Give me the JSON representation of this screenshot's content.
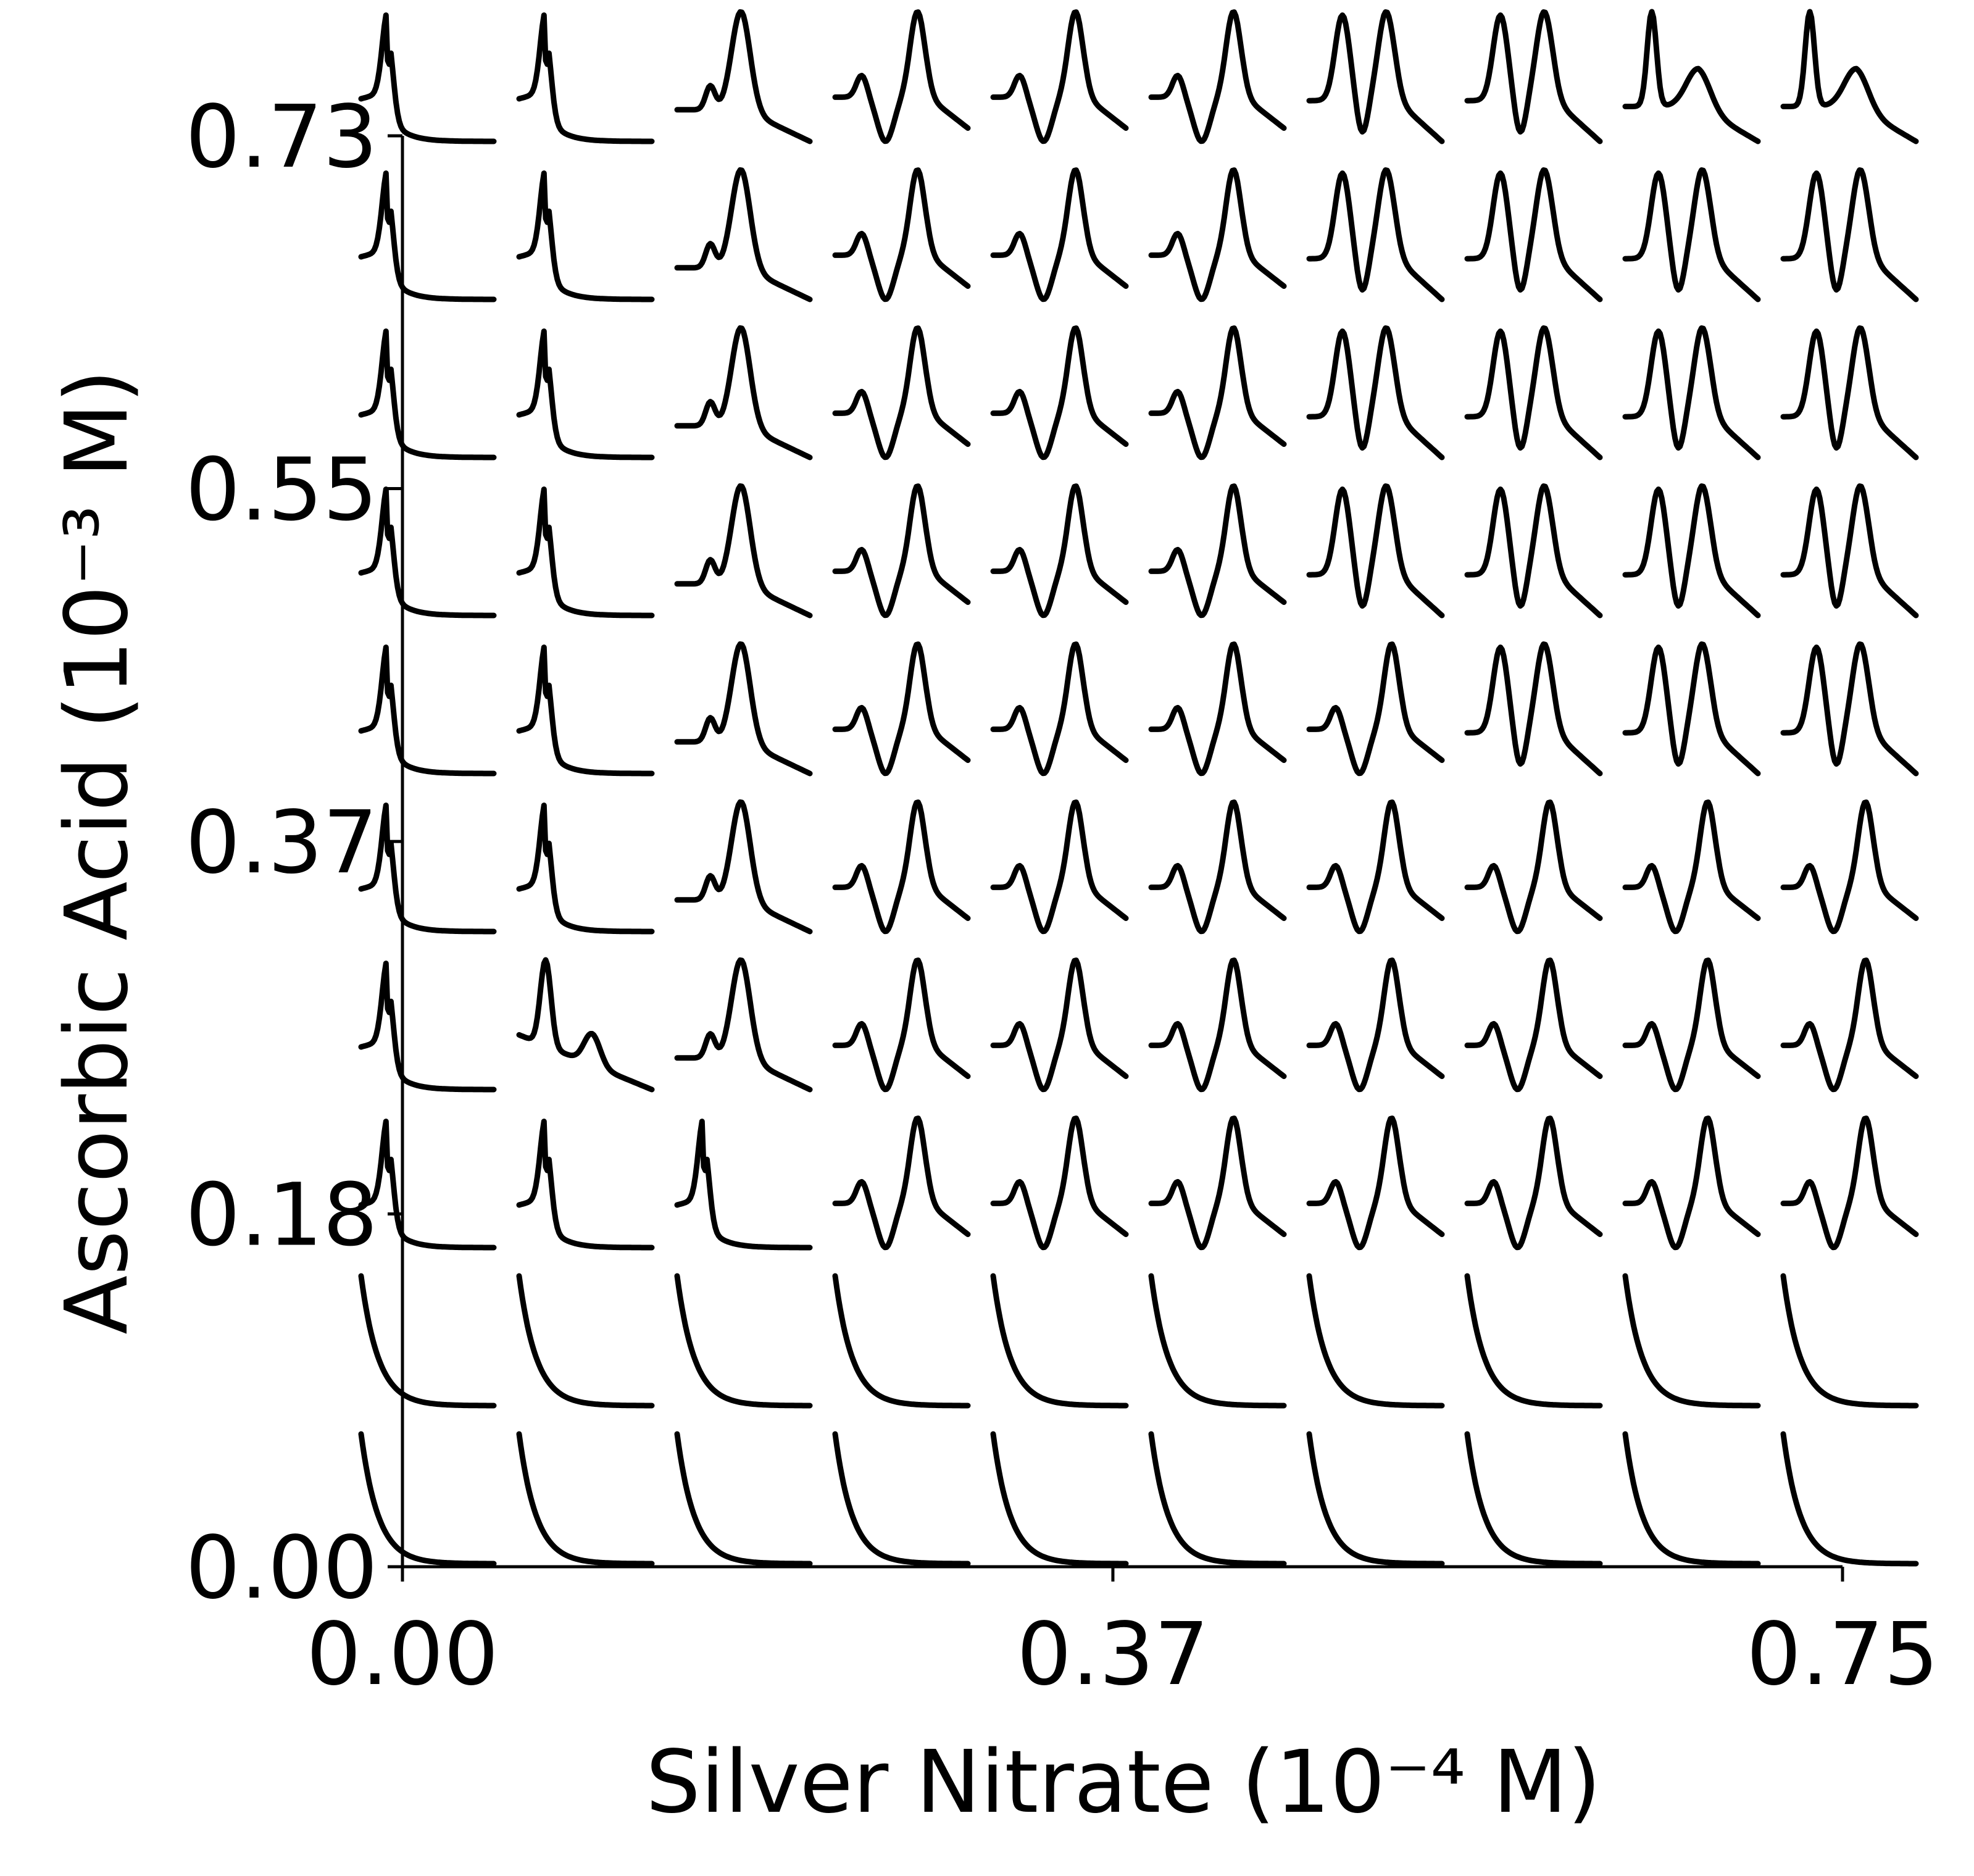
{
  "chart_data": {
    "type": "line",
    "description": "Grid of small absorbance spectra, one per (silver nitrate, ascorbic acid) concentration pair",
    "xlabel": "Silver Nitrate (10⁻⁴ M)",
    "ylabel": "Ascorbic Acid (10⁻³ M)",
    "xlim": [
      0.0,
      0.75
    ],
    "ylim": [
      0.0,
      0.73
    ],
    "x_ticks": [
      {
        "value": 0.0,
        "label": "0.00"
      },
      {
        "value": 0.37,
        "label": "0.37"
      },
      {
        "value": 0.75,
        "label": "0.75"
      }
    ],
    "y_ticks": [
      {
        "value": 0.0,
        "label": "0.00"
      },
      {
        "value": 0.18,
        "label": "0.18"
      },
      {
        "value": 0.37,
        "label": "0.37"
      },
      {
        "value": 0.55,
        "label": "0.55"
      },
      {
        "value": 0.73,
        "label": "0.73"
      }
    ],
    "grid": false,
    "legend": "none",
    "line_color": "#000000",
    "spectra_rows": [
      [
        "d",
        "d",
        "d",
        "d",
        "d",
        "d",
        "d",
        "d",
        "d",
        "d"
      ],
      [
        "d",
        "d",
        "d",
        "d",
        "d",
        "d",
        "d",
        "d",
        "d",
        "d"
      ],
      [
        "s",
        "s",
        "s",
        "p",
        "p",
        "p",
        "p",
        "p",
        "p",
        "p"
      ],
      [
        "s",
        "t",
        "w",
        "p",
        "p",
        "p",
        "p",
        "p",
        "p",
        "p"
      ],
      [
        "s",
        "s",
        "w",
        "p",
        "p",
        "p",
        "p",
        "p",
        "p",
        "p"
      ],
      [
        "s",
        "s",
        "w",
        "p",
        "p",
        "p",
        "p",
        "d2",
        "d2",
        "d2"
      ],
      [
        "s",
        "s",
        "w",
        "p",
        "p",
        "p",
        "d2",
        "d2",
        "d2",
        "d2"
      ],
      [
        "s",
        "s",
        "w",
        "p",
        "p",
        "p",
        "d2",
        "d2",
        "d2",
        "d2"
      ],
      [
        "s",
        "s",
        "w",
        "p",
        "p",
        "p",
        "d2",
        "d2",
        "d2",
        "d2"
      ],
      [
        "s",
        "s",
        "w",
        "p",
        "p",
        "p",
        "d2",
        "d2",
        "s2",
        "s2"
      ]
    ],
    "spectra_shapes": {
      "d": "monotonic decay",
      "s": "single sharp peak with tail",
      "t": "two sharp peaks",
      "w": "small shoulder then main peak",
      "p": "shoulder, dip, then tall peak",
      "d2": "double peak",
      "s2": "sharp peak then broad shoulder"
    }
  }
}
